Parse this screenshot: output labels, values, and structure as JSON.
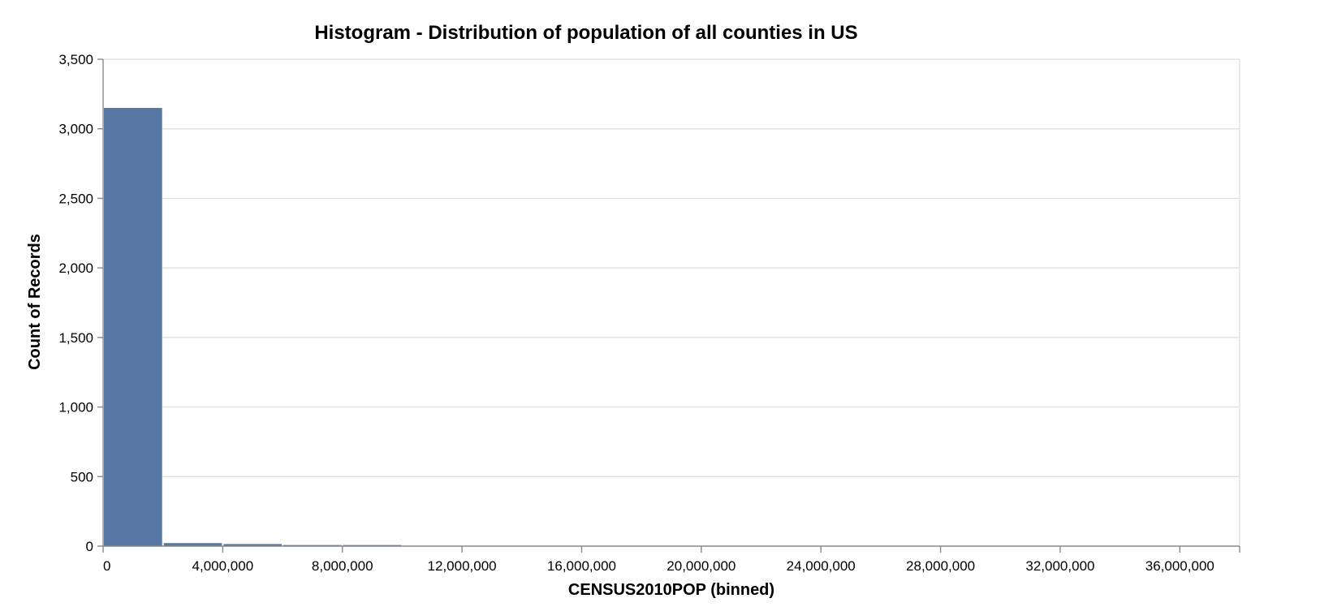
{
  "chart_data": {
    "type": "bar",
    "title": "Histogram - Distribution of population of all counties in US",
    "xlabel": "CENSUS2010POP (binned)",
    "ylabel": "Count of Records",
    "bin_width": 2000000,
    "bins": [
      {
        "start": 0,
        "end": 2000000,
        "count": 3150
      },
      {
        "start": 2000000,
        "end": 4000000,
        "count": 22
      },
      {
        "start": 4000000,
        "end": 6000000,
        "count": 15
      },
      {
        "start": 6000000,
        "end": 8000000,
        "count": 8
      },
      {
        "start": 8000000,
        "end": 10000000,
        "count": 8
      }
    ],
    "xlim": [
      0,
      38000000
    ],
    "ylim": [
      0,
      3500
    ],
    "x_ticks": [
      0,
      4000000,
      8000000,
      12000000,
      16000000,
      20000000,
      24000000,
      28000000,
      32000000,
      36000000
    ],
    "x_tick_labels": [
      "0",
      "4,000,000",
      "8,000,000",
      "12,000,000",
      "16,000,000",
      "20,000,000",
      "24,000,000",
      "28,000,000",
      "32,000,000",
      "36,000,000"
    ],
    "y_ticks": [
      0,
      500,
      1000,
      1500,
      2000,
      2500,
      3000,
      3500
    ],
    "y_tick_labels": [
      "0",
      "500",
      "1,000",
      "1,500",
      "2,000",
      "2,500",
      "3,000",
      "3,500"
    ],
    "grid": true,
    "bar_color": "#5778a4",
    "grid_color": "#dddddd",
    "axis_color": "#888888"
  }
}
